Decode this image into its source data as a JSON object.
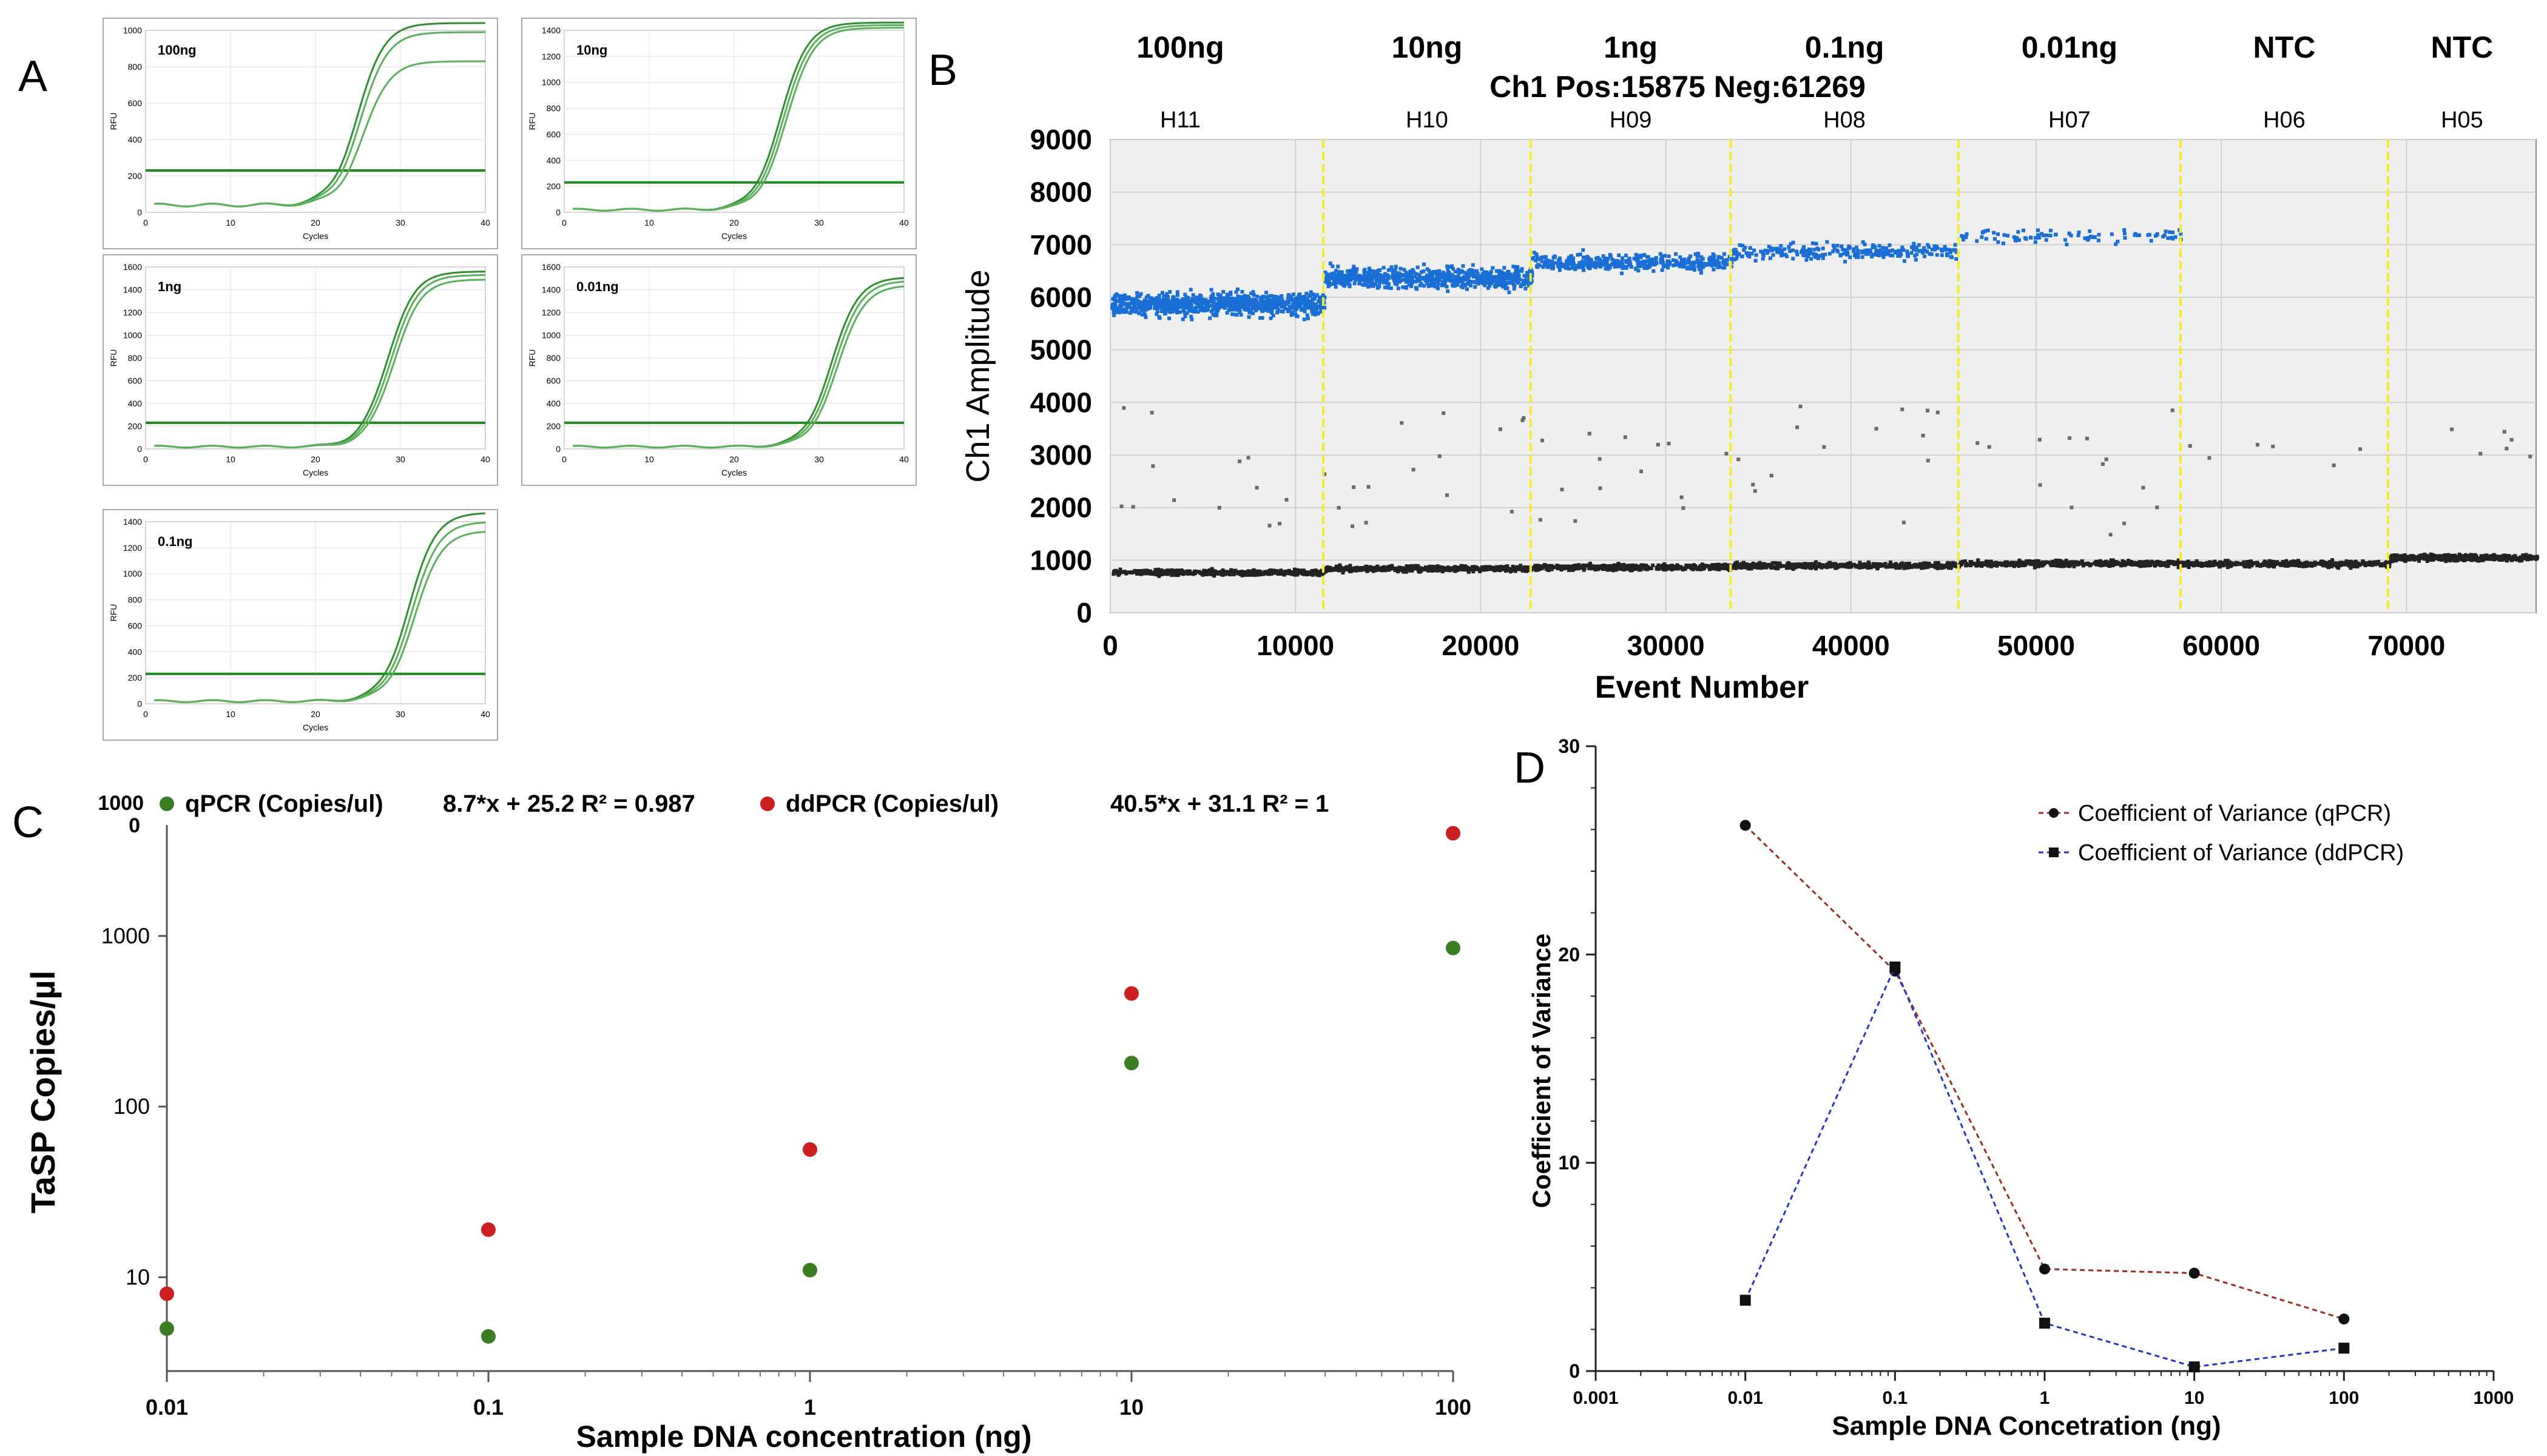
{
  "chart_data": [
    {
      "type": "line",
      "panel_label": "A",
      "subplots": [
        {
          "label": "100ng",
          "ylim": [
            0,
            1000
          ],
          "yticks": [
            0,
            200,
            400,
            600,
            800,
            1000
          ],
          "xticks": [
            0,
            10,
            20,
            30,
            40
          ],
          "xlabel": "Cycles",
          "ylabel": "RFU",
          "threshold": 230,
          "midpoint": 25,
          "plateaus": [
            1040,
            990,
            830
          ]
        },
        {
          "label": "10ng",
          "ylim": [
            0,
            1400
          ],
          "yticks": [
            0,
            200,
            400,
            600,
            800,
            1000,
            1200,
            1400
          ],
          "xticks": [
            0,
            10,
            20,
            30,
            40
          ],
          "xlabel": "Cycles",
          "ylabel": "RFU",
          "threshold": 230,
          "midpoint": 25.5,
          "plateaus": [
            1460,
            1440,
            1420
          ]
        },
        {
          "label": "1ng",
          "ylim": [
            0,
            1600
          ],
          "yticks": [
            0,
            200,
            400,
            600,
            800,
            1000,
            1200,
            1400,
            1600
          ],
          "xticks": [
            0,
            10,
            20,
            30,
            40
          ],
          "xlabel": "Cycles",
          "ylabel": "RFU",
          "threshold": 230,
          "midpoint": 28.5,
          "plateaus": [
            1560,
            1530,
            1490
          ]
        },
        {
          "label": "0.01ng",
          "ylim": [
            0,
            1600
          ],
          "yticks": [
            0,
            200,
            400,
            600,
            800,
            1000,
            1200,
            1400,
            1600
          ],
          "xticks": [
            0,
            10,
            20,
            30,
            40
          ],
          "xlabel": "Cycles",
          "ylabel": "RFU",
          "threshold": 230,
          "midpoint": 31.5,
          "plateaus": [
            1510,
            1480,
            1440
          ]
        },
        {
          "label": "0.1ng",
          "ylim": [
            0,
            1400
          ],
          "yticks": [
            0,
            200,
            400,
            600,
            800,
            1000,
            1200,
            1400
          ],
          "xticks": [
            0,
            10,
            20,
            30,
            40
          ],
          "xlabel": "Cycles",
          "ylabel": "RFU",
          "threshold": 230,
          "midpoint": 31,
          "plateaus": [
            1470,
            1400,
            1330
          ]
        }
      ]
    },
    {
      "type": "scatter",
      "panel_label": "B",
      "title": "Ch1 Pos:15875 Neg:61269",
      "xlabel": "Event Number",
      "ylabel": "Ch1 Amplitude",
      "xlim": [
        0,
        77000
      ],
      "ylim": [
        0,
        9000
      ],
      "xticks": [
        0,
        10000,
        20000,
        30000,
        40000,
        50000,
        60000,
        70000
      ],
      "yticks": [
        0,
        1000,
        2000,
        3000,
        4000,
        5000,
        6000,
        7000,
        8000,
        9000
      ],
      "wells": [
        {
          "concentration": "100ng",
          "well": "H11",
          "start": 0,
          "end": 11500,
          "positive_mean": 5900,
          "negative_mean": 800
        },
        {
          "concentration": "10ng",
          "well": "H10",
          "start": 11500,
          "end": 22700,
          "positive_mean": 6400,
          "negative_mean": 870
        },
        {
          "concentration": "1ng",
          "well": "H09",
          "start": 22700,
          "end": 33500,
          "positive_mean": 6700,
          "negative_mean": 900
        },
        {
          "concentration": "0.1ng",
          "well": "H08",
          "start": 33500,
          "end": 45800,
          "positive_mean": 6900,
          "negative_mean": 930
        },
        {
          "concentration": "0.01ng",
          "well": "H07",
          "start": 45800,
          "end": 57800,
          "positive_mean": 7200,
          "negative_mean": 970
        },
        {
          "concentration": "NTC",
          "well": "H06",
          "start": 57800,
          "end": 69000,
          "positive_mean": null,
          "negative_mean": 960
        },
        {
          "concentration": "NTC",
          "well": "H05",
          "start": 69000,
          "end": 77000,
          "positive_mean": null,
          "negative_mean": 1080
        }
      ],
      "colors": {
        "positive": "#1a6fd6",
        "negative": "#222222",
        "divider": "#f2ec2c"
      }
    },
    {
      "type": "scatter",
      "panel_label": "C",
      "xscale": "log",
      "yscale": "log",
      "xlabel": "Sample DNA concentration (ng)",
      "ylabel": "TaSP Copies/µl",
      "xticks": [
        "0.01",
        "0.1",
        "1",
        "10",
        "100"
      ],
      "yticks": [
        "10",
        "100",
        "1000",
        "1000\n0"
      ],
      "series": [
        {
          "name": "qPCR (Copies/ul)",
          "color": "#3a7d22",
          "equation": "8.7*x + 25.2 R² = 0.987",
          "x": [
            0.01,
            0.1,
            1,
            10,
            100
          ],
          "y": [
            5,
            4.5,
            11,
            180,
            850
          ]
        },
        {
          "name": "ddPCR (Copies/ul)",
          "color": "#cc1f1f",
          "equation": "40.5*x + 31.1 R² = 1",
          "x": [
            0.01,
            0.1,
            1,
            10,
            100
          ],
          "y": [
            8,
            19,
            56,
            460,
            4000
          ]
        }
      ]
    },
    {
      "type": "line",
      "panel_label": "D",
      "xscale": "log",
      "xlabel": "Sample DNA Concetration (ng)",
      "ylabel": "Coefficient of Variance",
      "xlim": [
        0.001,
        1000
      ],
      "ylim": [
        0,
        30
      ],
      "xticks": [
        "0.001",
        "0.01",
        "0.1",
        "1",
        "10",
        "100",
        "1000"
      ],
      "yticks": [
        "0",
        "10",
        "20",
        "30"
      ],
      "legend_position": "top-right",
      "series": [
        {
          "name": "Coefficient of Variance (qPCR)",
          "color": "#9b2d1f",
          "marker": "circle",
          "x": [
            0.01,
            0.1,
            1,
            10,
            100
          ],
          "y": [
            26.2,
            19.2,
            4.9,
            4.7,
            2.5
          ]
        },
        {
          "name": "Coefficient of Variance (ddPCR)",
          "color": "#2233cc",
          "marker": "square",
          "x": [
            0.01,
            0.1,
            1,
            10,
            100
          ],
          "y": [
            3.4,
            19.4,
            2.3,
            0.2,
            1.1
          ]
        }
      ]
    }
  ]
}
